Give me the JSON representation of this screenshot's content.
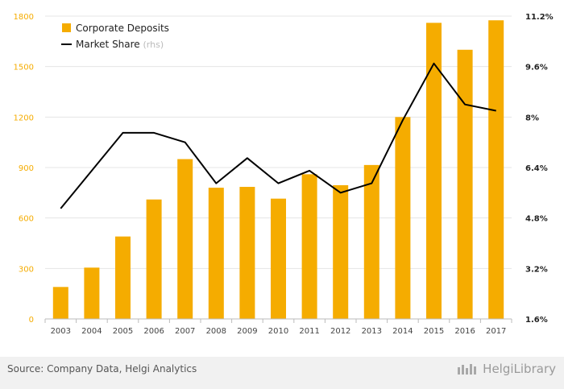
{
  "chart_data": {
    "type": "bar+line",
    "categories": [
      "2003",
      "2004",
      "2005",
      "2006",
      "2007",
      "2008",
      "2009",
      "2010",
      "2011",
      "2012",
      "2013",
      "2014",
      "2015",
      "2016",
      "2017"
    ],
    "series": [
      {
        "name": "Corporate Deposits",
        "type": "bar",
        "axis": "left",
        "color": "#f5ac00",
        "values": [
          190,
          305,
          490,
          710,
          950,
          780,
          785,
          715,
          860,
          795,
          915,
          1200,
          1760,
          1600,
          1775
        ]
      },
      {
        "name": "Market Share",
        "name_suffix": "(rhs)",
        "type": "line",
        "axis": "right",
        "color": "#000000",
        "values": [
          5.1,
          6.3,
          7.5,
          7.5,
          7.2,
          5.9,
          6.7,
          5.9,
          6.3,
          5.6,
          5.9,
          7.9,
          9.7,
          8.4,
          8.2
        ]
      }
    ],
    "y_left": {
      "ticks": [
        "0",
        "300",
        "600",
        "900",
        "1200",
        "1500",
        "1800"
      ],
      "range": [
        0,
        1800
      ]
    },
    "y_right": {
      "ticks": [
        "1.6%",
        "3.2%",
        "4.8%",
        "6.4%",
        "8%",
        "9.6%",
        "11.2%"
      ],
      "range": [
        1.6,
        11.2
      ]
    },
    "legend_placement": "top-left",
    "grid": "horizontal"
  },
  "footer": {
    "source": "Source: Company Data, Helgi Analytics",
    "brand": "HelgiLibrary"
  }
}
